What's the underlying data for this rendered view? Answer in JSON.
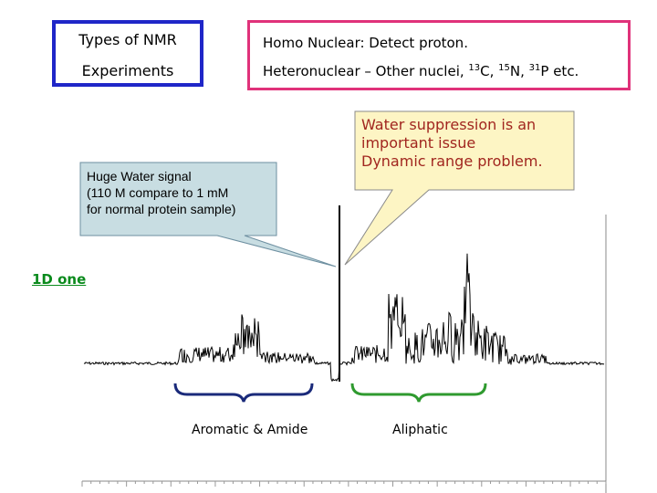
{
  "types_box": {
    "line1": "Types of NMR",
    "line2": "Experiments"
  },
  "nuclear_box": {
    "homo": "Homo Nuclear: Detect proton.",
    "hetero_prefix": "Heteronuclear – Other nuclei, ",
    "c_mass": "13",
    "c_symbol": "C, ",
    "n_mass": "15",
    "n_symbol": "N, ",
    "p_mass": "31",
    "p_symbol": "P etc."
  },
  "water_callout": {
    "line1": "Huge Water signal",
    "line2": "(110 M compare to 1 mM",
    "line3": "for normal protein sample)"
  },
  "suppression_callout": {
    "line1": "Water suppression is an",
    "line2": "important issue",
    "line3": "Dynamic range problem."
  },
  "link_text": "1D one",
  "aromatic_label": "Aromatic & Amide",
  "aliphatic_label": "Aliphatic",
  "colors": {
    "blue_border": "#1f26c8",
    "pink_border": "#e0327a",
    "callout_fill": "#fdf5c4",
    "link_green": "#0a8a1c",
    "bracket_blue": "#1a2a7a",
    "bracket_green": "#2f9a2f"
  },
  "spectrum_icon": "nmr-spectrum"
}
